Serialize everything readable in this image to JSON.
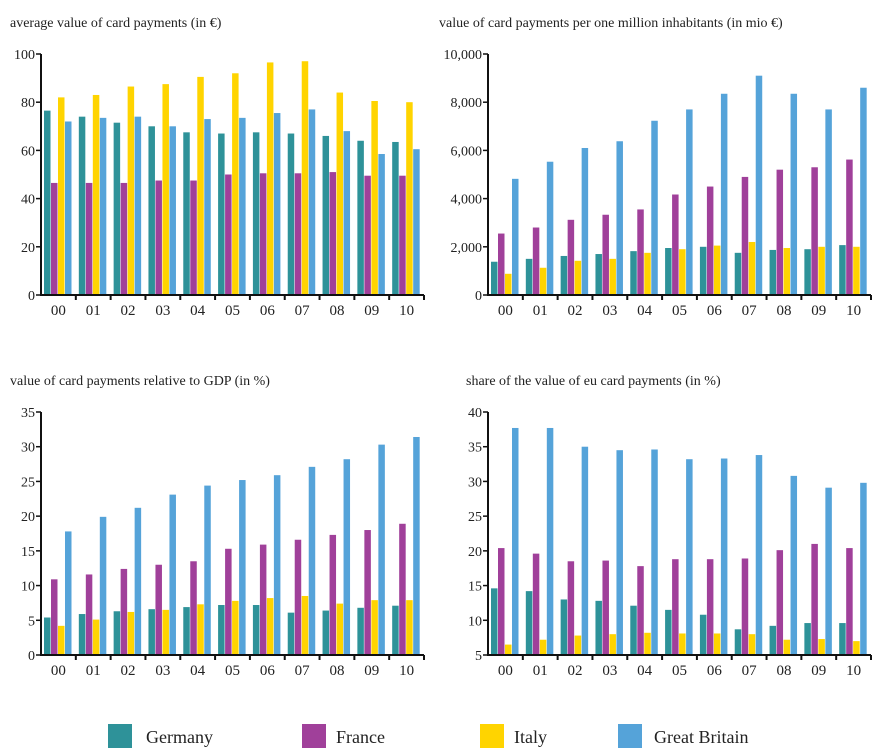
{
  "colors": {
    "Germany": "#2e9299",
    "France": "#a0409a",
    "Italy": "#ffd400",
    "Great Britain": "#55a3d9"
  },
  "legend": [
    "Germany",
    "France",
    "Italy",
    "Great Britain"
  ],
  "chart_data": [
    {
      "type": "bar",
      "title": "average value of card payments (in €)",
      "categories": [
        "00",
        "01",
        "02",
        "03",
        "04",
        "05",
        "06",
        "07",
        "08",
        "09",
        "10"
      ],
      "yticks": [
        "0",
        "20",
        "40",
        "60",
        "80",
        "100"
      ],
      "ylim": [
        0,
        100
      ],
      "series": [
        {
          "name": "Germany",
          "values": [
            76.5,
            74,
            71.5,
            70,
            67.5,
            67,
            67.5,
            67,
            66,
            64,
            63.5
          ]
        },
        {
          "name": "France",
          "values": [
            46.5,
            46.5,
            46.5,
            47.5,
            47.5,
            50,
            50.5,
            50.5,
            51,
            49.5,
            49.5
          ]
        },
        {
          "name": "Italy",
          "values": [
            82,
            83,
            86.5,
            87.5,
            90.5,
            92,
            96.5,
            97,
            84,
            80.5,
            80
          ]
        },
        {
          "name": "Great Britain",
          "values": [
            72,
            73.5,
            74,
            70,
            73,
            73.5,
            75.5,
            77,
            68,
            58.5,
            60.5
          ]
        }
      ]
    },
    {
      "type": "bar",
      "title": "value of card payments per one million inhabitants (in mio €)",
      "categories": [
        "00",
        "01",
        "02",
        "03",
        "04",
        "05",
        "06",
        "07",
        "08",
        "09",
        "10"
      ],
      "yticks": [
        "0",
        "2,000",
        "4,000",
        "6,000",
        "8,000",
        "10,000"
      ],
      "ylim": [
        0,
        10000
      ],
      "series": [
        {
          "name": "Germany",
          "values": [
            1380,
            1500,
            1620,
            1700,
            1820,
            1950,
            2000,
            1750,
            1870,
            1900,
            2070
          ]
        },
        {
          "name": "France",
          "values": [
            2550,
            2800,
            3120,
            3330,
            3550,
            4170,
            4500,
            4900,
            5200,
            5300,
            5620
          ]
        },
        {
          "name": "Italy",
          "values": [
            880,
            1130,
            1420,
            1500,
            1750,
            1900,
            2050,
            2200,
            1950,
            2000,
            2000
          ]
        },
        {
          "name": "Great Britain",
          "values": [
            4820,
            5530,
            6100,
            6380,
            7230,
            7700,
            8350,
            9100,
            8350,
            7700,
            8600
          ]
        }
      ]
    },
    {
      "type": "bar",
      "title": "value of card payments relative to GDP (in %)",
      "categories": [
        "00",
        "01",
        "02",
        "03",
        "04",
        "05",
        "06",
        "07",
        "08",
        "09",
        "10"
      ],
      "yticks": [
        "0",
        "5",
        "10",
        "15",
        "20",
        "25",
        "30",
        "35"
      ],
      "ylim": [
        0,
        35
      ],
      "series": [
        {
          "name": "Germany",
          "values": [
            5.4,
            5.9,
            6.3,
            6.6,
            6.9,
            7.2,
            7.2,
            6.1,
            6.4,
            6.8,
            7.1
          ]
        },
        {
          "name": "France",
          "values": [
            10.9,
            11.6,
            12.4,
            13.0,
            13.5,
            15.3,
            15.9,
            16.6,
            17.3,
            18.0,
            18.9
          ]
        },
        {
          "name": "Italy",
          "values": [
            4.2,
            5.1,
            6.2,
            6.5,
            7.3,
            7.8,
            8.2,
            8.5,
            7.4,
            7.9,
            7.9
          ]
        },
        {
          "name": "Great Britain",
          "values": [
            17.8,
            19.9,
            21.2,
            23.1,
            24.4,
            25.2,
            25.9,
            27.1,
            28.2,
            30.3,
            31.4
          ]
        }
      ]
    },
    {
      "type": "bar",
      "title": "share of the value of eu card payments (in %)",
      "categories": [
        "00",
        "01",
        "02",
        "03",
        "04",
        "05",
        "06",
        "07",
        "08",
        "09",
        "10"
      ],
      "yticks": [
        "5",
        "10",
        "15",
        "20",
        "25",
        "30",
        "35",
        "40"
      ],
      "ylim": [
        5,
        40
      ],
      "series": [
        {
          "name": "Germany",
          "values": [
            14.6,
            14.2,
            13.0,
            12.8,
            12.1,
            11.5,
            10.8,
            8.7,
            9.2,
            9.6,
            9.6
          ]
        },
        {
          "name": "France",
          "values": [
            20.4,
            19.6,
            18.5,
            18.6,
            17.8,
            18.8,
            18.8,
            18.9,
            20.1,
            21.0,
            20.4
          ]
        },
        {
          "name": "Italy",
          "values": [
            6.5,
            7.2,
            7.8,
            8.0,
            8.2,
            8.1,
            8.1,
            8.0,
            7.2,
            7.3,
            7.0
          ]
        },
        {
          "name": "Great Britain",
          "values": [
            37.7,
            37.7,
            35.0,
            34.5,
            34.6,
            33.2,
            33.3,
            33.8,
            30.8,
            29.1,
            29.8
          ]
        }
      ]
    }
  ]
}
